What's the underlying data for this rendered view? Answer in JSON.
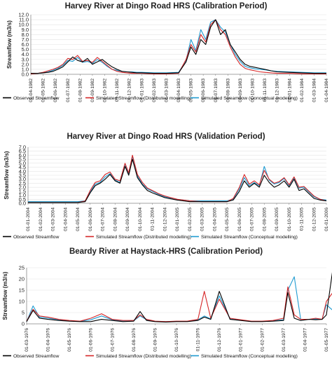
{
  "chart_data": [
    {
      "type": "line",
      "title": "Harvey River at Dingo Road HRS (Calibration Period)",
      "ylabel": "Streamflow  (m3/s)",
      "xlabel": "",
      "ylim": [
        0,
        12
      ],
      "yticks": [
        "0.0",
        "1.0",
        "2.0",
        "3.0",
        "4.0",
        "5.0",
        "6.0",
        "7.0",
        "8.0",
        "9.0",
        "10.0",
        "11.0",
        "12.0"
      ],
      "x_tick_labels": [
        "01-04-1982",
        "01-05-1982",
        "01-06-1982",
        "01-07-1982",
        "01-08-1982",
        "01-09-1982",
        "01-10-1982",
        "01-11-1982",
        "01-12-1982",
        "01-01-1983",
        "01-02-1983",
        "01-03-1983",
        "01-04-1983",
        "01-05-1983",
        "01-06-1983",
        "01-07-1983",
        "01-08-1983",
        "01-09-1983",
        "01-10-1983",
        "01-11-1983",
        "01-12-1983",
        "01-01-1984",
        "01-02-1984",
        "01-03-1984",
        "01-04-1984"
      ],
      "legend_position": "bottom",
      "x": [
        0,
        0.6,
        1.0,
        1.4,
        1.8,
        2.2,
        2.6,
        3.0,
        3.4,
        3.8,
        4.2,
        4.6,
        5.0,
        5.4,
        5.8,
        6.2,
        6.6,
        7.0,
        7.4,
        7.8,
        8.2,
        8.6,
        9.0,
        10.0,
        11.0,
        12.0,
        12.6,
        13.0,
        13.4,
        13.8,
        14.2,
        14.6,
        15.0,
        15.4,
        15.8,
        16.2,
        16.6,
        17.0,
        17.4,
        17.8,
        18.2,
        18.6,
        19.0,
        19.5,
        20.0,
        21.0,
        22.0,
        23.0,
        24.0
      ],
      "series": [
        {
          "name": "Observed Streamflow",
          "color": "#000000",
          "values": [
            0.2,
            0.2,
            0.3,
            0.4,
            0.6,
            1.0,
            1.5,
            2.5,
            3.5,
            2.8,
            2.5,
            3.2,
            2.0,
            2.5,
            3.0,
            2.2,
            1.5,
            1.0,
            0.6,
            0.5,
            0.4,
            0.3,
            0.3,
            0.2,
            0.2,
            0.3,
            2.5,
            5.5,
            4.0,
            7.0,
            6.0,
            9.5,
            11.0,
            8.0,
            9.0,
            6.0,
            4.5,
            3.0,
            2.0,
            1.6,
            1.4,
            1.2,
            1.0,
            0.7,
            0.5,
            0.4,
            0.3,
            0.2,
            0.2
          ]
        },
        {
          "name": "Simulated Streamflow (Distributed modelling)",
          "color": "#d62728",
          "values": [
            0.1,
            0.2,
            0.4,
            0.7,
            1.0,
            1.4,
            2.0,
            3.2,
            3.0,
            3.8,
            2.6,
            2.8,
            2.4,
            3.4,
            2.6,
            1.8,
            1.0,
            0.6,
            0.4,
            0.3,
            0.2,
            0.2,
            0.2,
            0.1,
            0.1,
            0.2,
            3.0,
            6.0,
            4.5,
            8.0,
            6.5,
            10.0,
            11.0,
            9.0,
            8.0,
            5.5,
            3.5,
            2.0,
            1.2,
            0.9,
            0.7,
            0.5,
            0.4,
            0.3,
            0.2,
            0.2,
            0.1,
            0.1,
            0.1
          ]
        },
        {
          "name": "Simulated Streamflow (Conceptual modelling)",
          "color": "#1f9bd1",
          "values": [
            0.2,
            0.2,
            0.3,
            0.5,
            0.8,
            1.2,
            1.8,
            2.8,
            2.6,
            3.4,
            2.4,
            2.6,
            2.2,
            3.0,
            2.4,
            1.6,
            1.0,
            0.8,
            0.6,
            0.5,
            0.5,
            0.4,
            0.4,
            0.3,
            0.3,
            0.4,
            2.8,
            7.0,
            4.8,
            9.0,
            7.0,
            10.5,
            11.0,
            9.5,
            8.5,
            6.0,
            4.0,
            2.6,
            1.6,
            1.3,
            1.1,
            1.0,
            0.9,
            0.7,
            0.6,
            0.5,
            0.4,
            0.3,
            0.3
          ]
        }
      ]
    },
    {
      "type": "line",
      "title": "Harvey River at Dingo Road HRS (Validation Period)",
      "ylabel": "Streamflow  (m3/s)",
      "xlabel": "",
      "ylim": [
        0,
        7
      ],
      "yticks": [
        "0.0",
        "0.5",
        "1.0",
        "1.5",
        "2.0",
        "2.5",
        "3.0",
        "3.5",
        "4.0",
        "4.5",
        "5.0",
        "5.5",
        "6.0",
        "6.5",
        "7.0"
      ],
      "x_tick_labels": [
        "01-01-2004",
        "01-02-2004",
        "01-03-2004",
        "01-04-2004",
        "01-05-2004",
        "01-06-2004",
        "01-07-2004",
        "01-08-2004",
        "01-09-2004",
        "01-10-2004",
        "01-11-2004",
        "01-12-2004",
        "01-01-2005",
        "01-02-2005",
        "01-03-2005",
        "01-04-2005",
        "01-05-2005",
        "01-06-2005",
        "01-07-2005",
        "01-08-2005",
        "01-09-2005",
        "01-10-2005",
        "01-11-2005",
        "01-12-2005",
        "01-01-2006"
      ],
      "legend_position": "bottom",
      "x": [
        0,
        1,
        2,
        3,
        4,
        4.6,
        5.0,
        5.4,
        5.8,
        6.2,
        6.6,
        7.0,
        7.4,
        7.8,
        8.1,
        8.4,
        8.8,
        9.2,
        9.6,
        10.0,
        10.5,
        11,
        12,
        13,
        14,
        15,
        16,
        16.5,
        17.0,
        17.4,
        17.8,
        18.2,
        18.6,
        19.0,
        19.4,
        19.8,
        20.2,
        20.6,
        21.0,
        21.4,
        21.8,
        22.2,
        22.6,
        23.0,
        23.5,
        24
      ],
      "series": [
        {
          "name": "Observed Streamflow",
          "color": "#000000",
          "values": [
            0.1,
            0.1,
            0.1,
            0.1,
            0.1,
            0.2,
            1.3,
            2.2,
            2.5,
            3.0,
            3.6,
            2.8,
            2.5,
            4.6,
            3.5,
            5.5,
            3.2,
            2.3,
            1.6,
            1.3,
            1.0,
            0.7,
            0.4,
            0.2,
            0.2,
            0.2,
            0.2,
            0.4,
            1.5,
            2.8,
            2.0,
            2.5,
            2.0,
            3.5,
            2.6,
            2.0,
            2.3,
            2.8,
            2.0,
            3.0,
            1.6,
            1.8,
            1.2,
            0.6,
            0.4,
            0.3
          ]
        },
        {
          "name": "Simulated Streamflow (Distributed modelling)",
          "color": "#d62728",
          "values": [
            0.1,
            0.1,
            0.1,
            0.1,
            0.1,
            0.3,
            1.6,
            2.6,
            2.8,
            3.6,
            3.9,
            3.0,
            2.8,
            5.0,
            3.8,
            6.0,
            3.6,
            2.6,
            1.9,
            1.6,
            1.2,
            0.9,
            0.5,
            0.3,
            0.2,
            0.2,
            0.2,
            0.6,
            2.0,
            3.6,
            2.4,
            2.8,
            2.3,
            4.1,
            3.0,
            2.5,
            2.7,
            3.2,
            2.3,
            3.3,
            2.0,
            2.1,
            1.5,
            0.9,
            0.5,
            0.3
          ]
        },
        {
          "name": "Simulated Streamflow (Conceptual modelling)",
          "color": "#1f9bd1",
          "values": [
            0.2,
            0.2,
            0.2,
            0.2,
            0.2,
            0.3,
            1.4,
            2.4,
            2.6,
            3.3,
            3.7,
            2.9,
            2.6,
            4.9,
            3.6,
            5.9,
            3.4,
            2.4,
            1.8,
            1.5,
            1.1,
            0.8,
            0.5,
            0.3,
            0.3,
            0.3,
            0.3,
            0.5,
            1.8,
            3.2,
            2.2,
            2.6,
            2.2,
            4.6,
            2.9,
            2.4,
            2.6,
            3.1,
            2.2,
            3.2,
            1.9,
            2.0,
            1.4,
            0.8,
            0.5,
            0.4
          ]
        }
      ]
    },
    {
      "type": "line",
      "title": "Beardy River at Haystack-HRS (Calibration Period)",
      "ylabel": "Streamflow  (m3/s)",
      "xlabel": "",
      "ylim": [
        0,
        25
      ],
      "yticks": [
        "0",
        "5",
        "10",
        "15",
        "20",
        "25"
      ],
      "x_tick_labels": [
        "01-03-1976",
        "01-04-1976",
        "01-05-1976",
        "01-06-1976",
        "01-07-1976",
        "01-08-1976",
        "01-09-1976",
        "01-10-1976",
        "01-11-1976",
        "01-12-1976",
        "01-01-1977",
        "01-02-1977",
        "01-03-1977",
        "01-04-1977",
        "01-05-1977"
      ],
      "legend_position": "bottom",
      "x": [
        0,
        0.3,
        0.6,
        1.0,
        1.5,
        2.0,
        2.5,
        3.0,
        3.5,
        4.0,
        4.5,
        5.0,
        5.3,
        5.6,
        6.0,
        6.5,
        7.0,
        7.5,
        8.0,
        8.3,
        8.6,
        9.0,
        9.5,
        10.0,
        10.5,
        11.0,
        11.5,
        12.0,
        12.2,
        12.5,
        12.8,
        13.2,
        13.5,
        13.8,
        14.0,
        14.3,
        14.7
      ],
      "series": [
        {
          "name": "Observed Streamflow",
          "color": "#000000",
          "values": [
            1.0,
            6.0,
            2.5,
            2.0,
            1.5,
            1.2,
            1.0,
            1.0,
            2.0,
            1.5,
            1.0,
            1.2,
            5.5,
            1.5,
            1.0,
            0.8,
            1.0,
            1.0,
            1.5,
            3.0,
            2.0,
            14.5,
            2.0,
            1.5,
            1.0,
            1.0,
            1.2,
            1.5,
            14.0,
            2.5,
            1.5,
            2.0,
            1.8,
            2.0,
            4.0,
            24.5,
            3.0
          ]
        },
        {
          "name": "Simulated Streamflow (Distributed modelling)",
          "color": "#d62728",
          "values": [
            1.2,
            6.5,
            3.5,
            3.0,
            2.0,
            1.5,
            1.2,
            2.5,
            4.5,
            2.0,
            1.5,
            1.5,
            4.0,
            2.0,
            1.2,
            1.0,
            1.2,
            1.2,
            2.0,
            14.5,
            2.5,
            11.0,
            2.5,
            1.8,
            1.2,
            1.2,
            1.5,
            2.5,
            16.5,
            4.0,
            2.0,
            2.0,
            2.5,
            2.0,
            10.0,
            14.0,
            3.5
          ]
        },
        {
          "name": "Simulated Streamflow (Conceptual modelling)",
          "color": "#1f9bd1",
          "values": [
            1.0,
            8.0,
            3.0,
            2.5,
            1.8,
            1.4,
            1.1,
            1.8,
            3.5,
            1.8,
            1.3,
            1.4,
            3.5,
            1.8,
            1.1,
            0.9,
            1.1,
            1.1,
            1.8,
            3.5,
            2.2,
            12.5,
            2.2,
            1.6,
            1.1,
            1.1,
            1.3,
            1.8,
            15.0,
            21.0,
            2.0,
            2.0,
            2.2,
            2.0,
            8.5,
            6.0,
            2.5
          ]
        }
      ]
    }
  ]
}
